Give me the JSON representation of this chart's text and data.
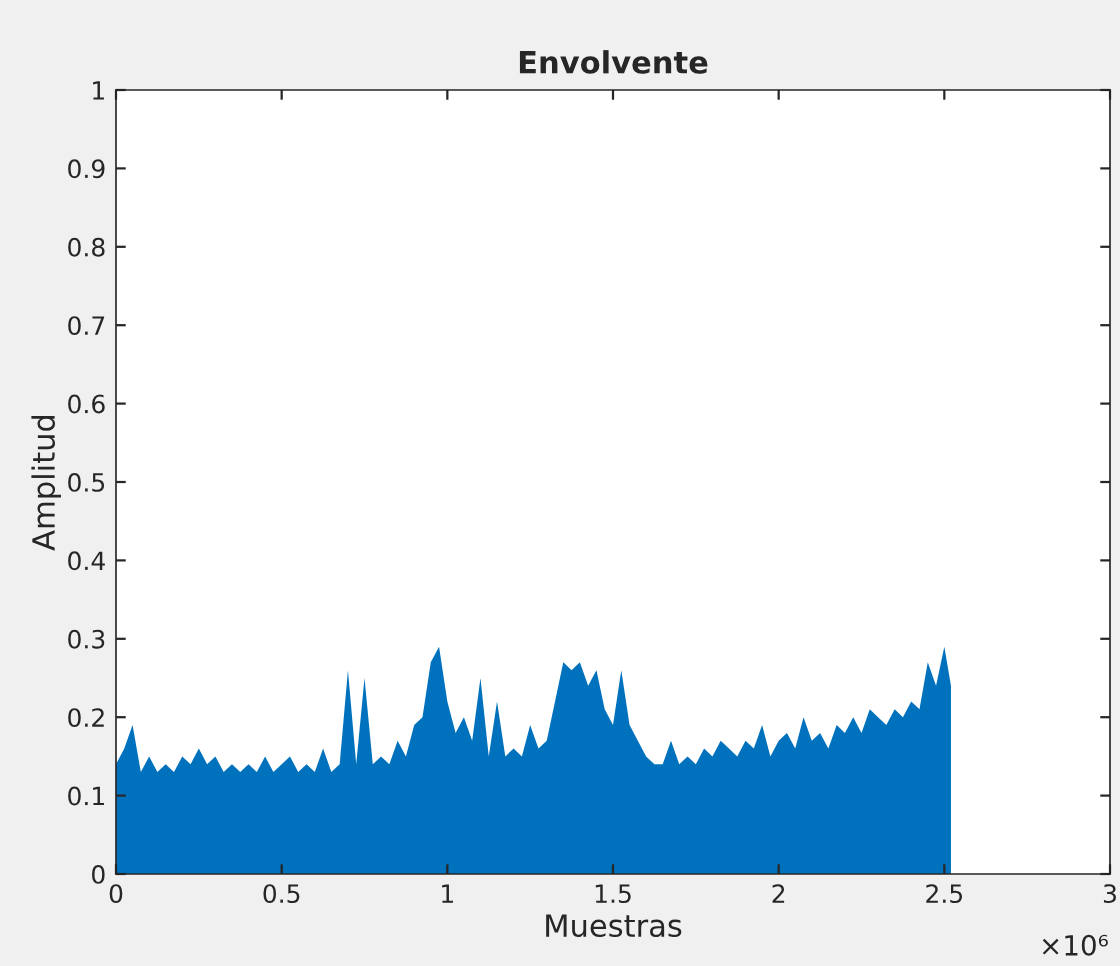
{
  "chart_data": {
    "type": "area",
    "title": "Envolvente",
    "xlabel": "Muestras",
    "ylabel": "Amplitud",
    "annotations": [
      "×10⁶"
    ],
    "x": [
      0,
      0.025,
      0.05,
      0.075,
      0.1,
      0.125,
      0.15,
      0.175,
      0.2,
      0.225,
      0.25,
      0.275,
      0.3,
      0.325,
      0.35,
      0.375,
      0.4,
      0.425,
      0.45,
      0.475,
      0.5,
      0.525,
      0.55,
      0.575,
      0.6,
      0.625,
      0.65,
      0.675,
      0.7,
      0.725,
      0.75,
      0.775,
      0.8,
      0.825,
      0.85,
      0.875,
      0.9,
      0.925,
      0.95,
      0.975,
      1.0,
      1.025,
      1.05,
      1.075,
      1.1,
      1.125,
      1.15,
      1.175,
      1.2,
      1.225,
      1.25,
      1.275,
      1.3,
      1.325,
      1.35,
      1.375,
      1.4,
      1.425,
      1.45,
      1.475,
      1.5,
      1.525,
      1.55,
      1.575,
      1.6,
      1.625,
      1.65,
      1.675,
      1.7,
      1.725,
      1.75,
      1.775,
      1.8,
      1.825,
      1.85,
      1.875,
      1.9,
      1.925,
      1.95,
      1.975,
      2.0,
      2.025,
      2.05,
      2.075,
      2.1,
      2.125,
      2.15,
      2.175,
      2.2,
      2.225,
      2.25,
      2.275,
      2.3,
      2.325,
      2.35,
      2.375,
      2.4,
      2.425,
      2.45,
      2.475,
      2.5,
      2.52
    ],
    "series": [
      {
        "color": "#0072bd",
        "values": [
          0.14,
          0.16,
          0.19,
          0.13,
          0.15,
          0.13,
          0.14,
          0.13,
          0.15,
          0.14,
          0.16,
          0.14,
          0.15,
          0.13,
          0.14,
          0.13,
          0.14,
          0.13,
          0.15,
          0.13,
          0.14,
          0.15,
          0.13,
          0.14,
          0.13,
          0.16,
          0.13,
          0.14,
          0.26,
          0.14,
          0.25,
          0.14,
          0.15,
          0.14,
          0.17,
          0.15,
          0.19,
          0.2,
          0.27,
          0.29,
          0.22,
          0.18,
          0.2,
          0.17,
          0.25,
          0.15,
          0.22,
          0.15,
          0.16,
          0.15,
          0.19,
          0.16,
          0.17,
          0.22,
          0.27,
          0.26,
          0.27,
          0.24,
          0.26,
          0.21,
          0.19,
          0.26,
          0.19,
          0.17,
          0.15,
          0.14,
          0.14,
          0.17,
          0.14,
          0.15,
          0.14,
          0.16,
          0.15,
          0.17,
          0.16,
          0.15,
          0.17,
          0.16,
          0.19,
          0.15,
          0.17,
          0.18,
          0.16,
          0.2,
          0.17,
          0.18,
          0.16,
          0.19,
          0.18,
          0.2,
          0.18,
          0.21,
          0.2,
          0.19,
          0.21,
          0.2,
          0.22,
          0.21,
          0.27,
          0.24,
          0.29,
          0.24
        ]
      }
    ],
    "xlim": [
      0,
      3
    ],
    "ylim": [
      0,
      1
    ],
    "xticks": [
      0,
      0.5,
      1,
      1.5,
      2,
      2.5,
      3
    ],
    "yticks": [
      0,
      0.1,
      0.2,
      0.3,
      0.4,
      0.5,
      0.6,
      0.7,
      0.8,
      0.9,
      1
    ],
    "grid": false,
    "legend": false
  }
}
